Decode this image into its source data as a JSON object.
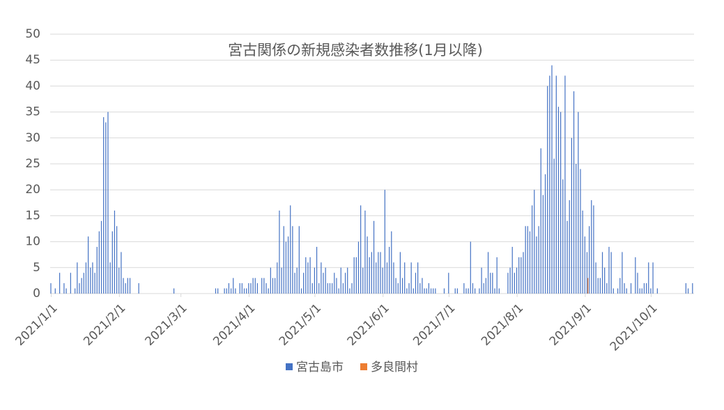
{
  "chart_data": {
    "type": "bar",
    "title": "宮古関係の新規感染者数推移(1月以降)",
    "categories": [
      "2021/1/1",
      null,
      null,
      null,
      null,
      null,
      null,
      null,
      null,
      null,
      null,
      null,
      null,
      null,
      null,
      null,
      null,
      null,
      null,
      null,
      null,
      null,
      null,
      null,
      null,
      null,
      null,
      null,
      null,
      null,
      null,
      "2021/2/1",
      null,
      null,
      null,
      null,
      null,
      null,
      null,
      null,
      null,
      null,
      null,
      null,
      null,
      null,
      null,
      null,
      null,
      null,
      null,
      null,
      null,
      null,
      null,
      null,
      null,
      null,
      null,
      "2021/3/1",
      null,
      null,
      null,
      null,
      null,
      null,
      null,
      null,
      null,
      null,
      null,
      null,
      null,
      null,
      null,
      null,
      null,
      null,
      null,
      null,
      null,
      null,
      null,
      null,
      null,
      null,
      null,
      null,
      null,
      null,
      "2021/4/1",
      null,
      null,
      null,
      null,
      null,
      null,
      null,
      null,
      null,
      null,
      null,
      null,
      null,
      null,
      null,
      null,
      null,
      null,
      null,
      null,
      null,
      null,
      null,
      null,
      null,
      null,
      null,
      null,
      null,
      "2021/5/1",
      null,
      null,
      null,
      null,
      null,
      null,
      null,
      null,
      null,
      null,
      null,
      null,
      null,
      null,
      null,
      null,
      null,
      null,
      null,
      null,
      null,
      null,
      null,
      null,
      null,
      null,
      null,
      null,
      null,
      null,
      "2021/6/1",
      null,
      null,
      null,
      null,
      null,
      null,
      null,
      null,
      null,
      null,
      null,
      null,
      null,
      null,
      null,
      null,
      null,
      null,
      null,
      null,
      null,
      null,
      null,
      null,
      null,
      null,
      null,
      null,
      null,
      "2021/7/1",
      null,
      null,
      null,
      null,
      null,
      null,
      null,
      null,
      null,
      null,
      null,
      null,
      null,
      null,
      null,
      null,
      null,
      null,
      null,
      null,
      null,
      null,
      null,
      null,
      null,
      null,
      null,
      null,
      null,
      null,
      "2021/8/1",
      null,
      null,
      null,
      null,
      null,
      null,
      null,
      null,
      null,
      null,
      null,
      null,
      null,
      null,
      null,
      null,
      null,
      null,
      null,
      null,
      null,
      null,
      null,
      null,
      null,
      null,
      null,
      null,
      null,
      null,
      "2021/9/1",
      null,
      null,
      null,
      null,
      null,
      null,
      null,
      null,
      null,
      null,
      null,
      null,
      null,
      null,
      null,
      null,
      null,
      null,
      null,
      null,
      null,
      null,
      null,
      null,
      null,
      null,
      null,
      null,
      null,
      "2021/10/1",
      null,
      null,
      null,
      null,
      null,
      null,
      null,
      null,
      null,
      null,
      null,
      null,
      null,
      null,
      null,
      null,
      null,
      null,
      null
    ],
    "series": [
      {
        "name": "宮古島市",
        "color": "#4472c4",
        "values": [
          2,
          0,
          1,
          0,
          4,
          0,
          2,
          1,
          0,
          4,
          0,
          1,
          6,
          2,
          3,
          4,
          6,
          11,
          5,
          6,
          4,
          9,
          12,
          14,
          34,
          33,
          35,
          6,
          12,
          16,
          13,
          5,
          8,
          3,
          2,
          3,
          3,
          0,
          0,
          0,
          2,
          0,
          0,
          0,
          0,
          0,
          0,
          0,
          0,
          0,
          0,
          0,
          0,
          0,
          0,
          0,
          1,
          0,
          0,
          0,
          0,
          0,
          0,
          0,
          0,
          0,
          0,
          0,
          0,
          0,
          0,
          0,
          0,
          0,
          0,
          1,
          1,
          0,
          0,
          1,
          1,
          2,
          1,
          3,
          1,
          0,
          2,
          2,
          1,
          1,
          2,
          2,
          3,
          3,
          2,
          0,
          3,
          3,
          2,
          1,
          5,
          3,
          3,
          6,
          16,
          5,
          13,
          10,
          11,
          17,
          13,
          4,
          5,
          13,
          1,
          4,
          7,
          6,
          7,
          2,
          5,
          9,
          2,
          6,
          4,
          5,
          2,
          2,
          2,
          4,
          3,
          1,
          5,
          2,
          4,
          5,
          1,
          2,
          7,
          7,
          10,
          17,
          5,
          16,
          11,
          7,
          8,
          14,
          6,
          8,
          8,
          5,
          20,
          6,
          9,
          12,
          6,
          3,
          2,
          8,
          3,
          6,
          1,
          2,
          6,
          1,
          4,
          6,
          2,
          3,
          1,
          1,
          2,
          1,
          1,
          1,
          0,
          0,
          0,
          1,
          0,
          4,
          0,
          0,
          1,
          1,
          0,
          0,
          2,
          1,
          1,
          10,
          2,
          1,
          0,
          1,
          5,
          2,
          3,
          8,
          4,
          4,
          1,
          7,
          1,
          0,
          0,
          0,
          4,
          5,
          9,
          4,
          5,
          7,
          7,
          8,
          13,
          13,
          12,
          17,
          20,
          11,
          13,
          28,
          19,
          23,
          40,
          42,
          44,
          26,
          42,
          36,
          35,
          22,
          42,
          14,
          18,
          30,
          39,
          25,
          35,
          24,
          16,
          11,
          8,
          13,
          18,
          17,
          6,
          3,
          3,
          8,
          5,
          2,
          9,
          8,
          1,
          0,
          1,
          3,
          8,
          2,
          1,
          0,
          2,
          0,
          7,
          4,
          1,
          1,
          2,
          2,
          6,
          1,
          6,
          0,
          1,
          0,
          0,
          0,
          0,
          0,
          0,
          0,
          0,
          0,
          0,
          0,
          0,
          2,
          1,
          0,
          2
        ]
      },
      {
        "name": "多良間村",
        "color": "#ed7d31",
        "values": [
          0,
          0,
          0,
          0,
          0,
          0,
          0,
          0,
          0,
          0,
          0,
          0,
          0,
          0,
          0,
          0,
          0,
          0,
          0,
          0,
          0,
          0,
          0,
          0,
          0,
          0,
          0,
          0,
          0,
          0,
          0,
          0,
          0,
          0,
          0,
          0,
          0,
          0,
          0,
          0,
          0,
          0,
          0,
          0,
          0,
          0,
          0,
          0,
          0,
          0,
          0,
          0,
          0,
          0,
          0,
          0,
          0,
          0,
          0,
          0,
          0,
          0,
          0,
          0,
          0,
          0,
          0,
          0,
          0,
          0,
          0,
          0,
          0,
          0,
          0,
          0,
          0,
          0,
          0,
          0,
          0,
          0,
          0,
          0,
          0,
          0,
          0,
          0,
          0,
          0,
          0,
          0,
          0,
          0,
          0,
          0,
          0,
          0,
          0,
          0,
          0,
          0,
          0,
          0,
          0,
          0,
          0,
          0,
          0,
          0,
          0,
          0,
          0,
          0,
          0,
          0,
          0,
          0,
          0,
          0,
          0,
          0,
          0,
          0,
          0,
          0,
          0,
          0,
          0,
          0,
          0,
          0,
          0,
          0,
          0,
          0,
          0,
          0,
          0,
          0,
          0,
          0,
          0,
          0,
          0,
          0,
          0,
          0,
          0,
          0,
          0,
          0,
          0,
          0,
          0,
          0,
          0,
          0,
          0,
          0,
          0,
          0,
          0,
          0,
          0,
          0,
          0,
          0,
          0,
          0,
          0,
          0,
          0,
          0,
          0,
          0,
          0,
          0,
          0,
          0,
          0,
          0,
          0,
          0,
          0,
          0,
          0,
          0,
          0,
          0,
          0,
          0,
          0,
          0,
          0,
          0,
          0,
          0,
          0,
          0,
          0,
          0,
          0,
          0,
          0,
          0,
          0,
          0,
          0,
          0,
          0,
          0,
          0,
          0,
          0,
          0,
          0,
          0,
          0,
          0,
          0,
          0,
          0,
          0,
          0,
          0,
          0,
          0,
          0,
          0,
          0,
          0,
          0,
          0,
          0,
          0,
          0,
          0,
          0,
          0,
          0,
          0,
          0,
          0,
          3,
          0,
          0,
          0,
          0,
          0,
          0,
          0,
          0,
          0,
          0,
          0,
          0,
          0,
          0,
          0,
          0,
          0,
          0,
          0,
          0,
          0,
          0,
          0,
          0,
          0,
          0,
          0,
          0,
          0,
          0,
          0,
          0,
          0,
          0,
          0,
          0,
          0,
          0,
          0,
          0,
          0,
          0,
          0,
          0,
          0,
          0,
          0,
          0
        ]
      }
    ],
    "ylim": [
      0,
      50
    ],
    "yticks": [
      0,
      5,
      10,
      15,
      20,
      25,
      30,
      35,
      40,
      45,
      50
    ],
    "grid": true,
    "legend": "bottom"
  }
}
